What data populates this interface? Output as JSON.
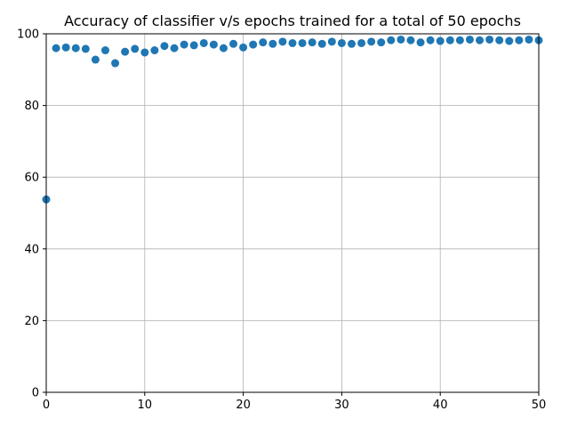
{
  "chart_data": {
    "type": "scatter",
    "title": "Accuracy of classifier v/s epochs trained for a total of 50 epochs",
    "xlabel": "",
    "ylabel": "",
    "xlim": [
      0,
      50
    ],
    "ylim": [
      0,
      100
    ],
    "x_ticks": [
      0,
      10,
      20,
      30,
      40,
      50
    ],
    "y_ticks": [
      0,
      20,
      40,
      60,
      80,
      100
    ],
    "grid": true,
    "marker_color": "#1f77b4",
    "x": [
      0,
      1,
      2,
      3,
      4,
      5,
      6,
      7,
      8,
      9,
      10,
      11,
      12,
      13,
      14,
      15,
      16,
      17,
      18,
      19,
      20,
      21,
      22,
      23,
      24,
      25,
      26,
      27,
      28,
      29,
      30,
      31,
      32,
      33,
      34,
      35,
      36,
      37,
      38,
      39,
      40,
      41,
      42,
      43,
      44,
      45,
      46,
      47,
      48,
      49,
      50
    ],
    "y": [
      53.8,
      96.0,
      96.2,
      96.0,
      95.8,
      92.8,
      95.4,
      91.8,
      95.0,
      95.8,
      94.8,
      95.4,
      96.6,
      96.0,
      97.0,
      96.8,
      97.4,
      97.0,
      96.0,
      97.2,
      96.2,
      97.0,
      97.6,
      97.2,
      97.8,
      97.4,
      97.4,
      97.6,
      97.2,
      97.8,
      97.4,
      97.2,
      97.4,
      97.8,
      97.6,
      98.2,
      98.4,
      98.2,
      97.6,
      98.2,
      98.0,
      98.2,
      98.2,
      98.4,
      98.2,
      98.4,
      98.2,
      98.0,
      98.2,
      98.4,
      98.2
    ]
  }
}
